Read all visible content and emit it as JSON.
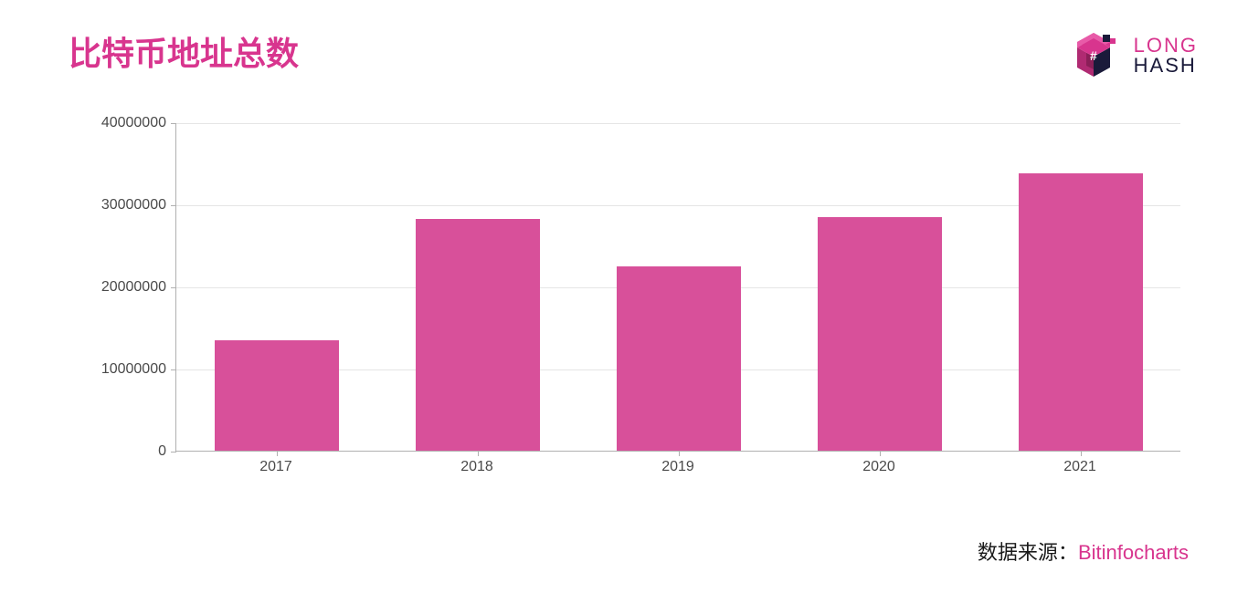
{
  "title": "比特币地址总数",
  "logo": {
    "text_top": "LONG",
    "text_bottom": "HASH",
    "primary_color": "#d8358e",
    "secondary_color": "#1a1a3a"
  },
  "chart": {
    "type": "bar",
    "categories": [
      "2017",
      "2018",
      "2019",
      "2020",
      "2021"
    ],
    "values": [
      13500000,
      28200000,
      22500000,
      28400000,
      33800000
    ],
    "bar_color": "#d8509a",
    "ylim": [
      0,
      40000000
    ],
    "ytick_step": 10000000,
    "yticks": [
      0,
      10000000,
      20000000,
      30000000,
      40000000
    ],
    "ytick_labels": [
      "0",
      "10000000",
      "20000000",
      "30000000",
      "40000000"
    ],
    "background_color": "#ffffff",
    "grid_color": "#e5e5e5",
    "axis_color": "#b0b0b0",
    "label_color": "#4a4a4a",
    "label_fontsize": 16,
    "bar_width_ratio": 0.62
  },
  "source": {
    "label": "数据来源：",
    "link_text": "Bitinfocharts"
  }
}
